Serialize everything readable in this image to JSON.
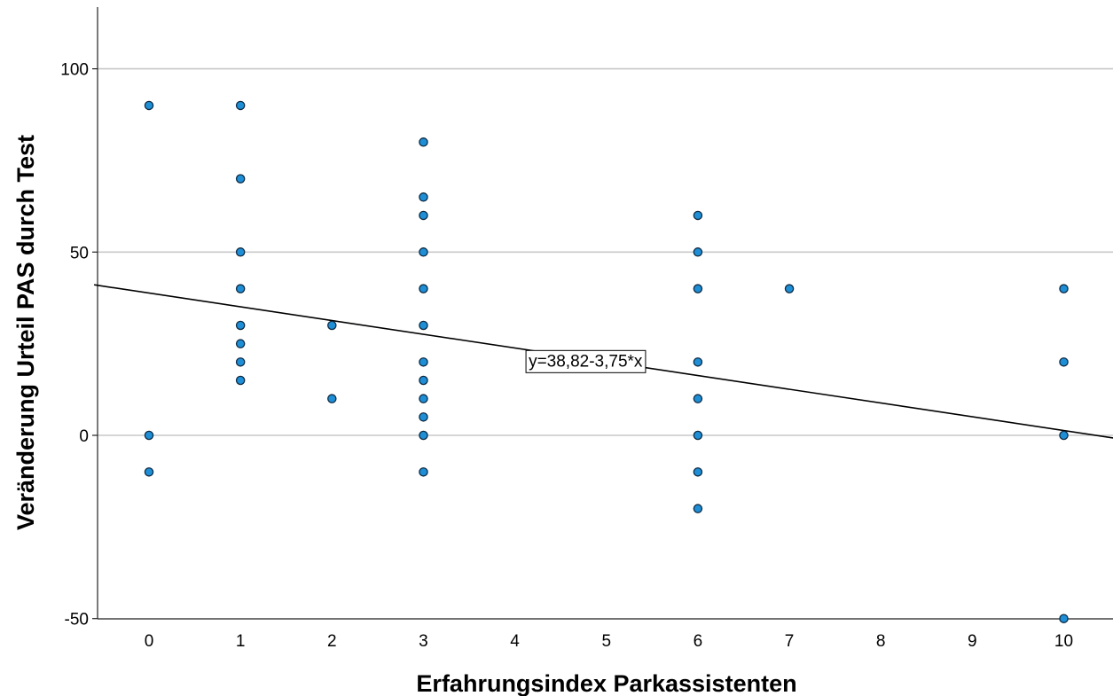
{
  "chart_data": {
    "type": "scatter",
    "xlabel": "Erfahrungsindex Parkassistenten",
    "ylabel": "Veränderung Urteil PAS durch Test",
    "x_ticks": [
      "0",
      "1",
      "2",
      "3",
      "4",
      "5",
      "6",
      "7",
      "8",
      "9",
      "10"
    ],
    "y_ticks": [
      "100",
      "50",
      "0",
      "-50"
    ],
    "xlim": [
      -0.6,
      10.55
    ],
    "ylim": [
      -50,
      118
    ],
    "grid": "horizontal",
    "point_color": "#1e8fd6",
    "points": [
      {
        "x": 0,
        "y": 90
      },
      {
        "x": 0,
        "y": 0
      },
      {
        "x": 0,
        "y": -10
      },
      {
        "x": 1,
        "y": 90
      },
      {
        "x": 1,
        "y": 70
      },
      {
        "x": 1,
        "y": 50
      },
      {
        "x": 1,
        "y": 40
      },
      {
        "x": 1,
        "y": 30
      },
      {
        "x": 1,
        "y": 25
      },
      {
        "x": 1,
        "y": 20
      },
      {
        "x": 1,
        "y": 15
      },
      {
        "x": 2,
        "y": 30
      },
      {
        "x": 2,
        "y": 10
      },
      {
        "x": 3,
        "y": 80
      },
      {
        "x": 3,
        "y": 65
      },
      {
        "x": 3,
        "y": 60
      },
      {
        "x": 3,
        "y": 50
      },
      {
        "x": 3,
        "y": 40
      },
      {
        "x": 3,
        "y": 30
      },
      {
        "x": 3,
        "y": 20
      },
      {
        "x": 3,
        "y": 15
      },
      {
        "x": 3,
        "y": 10
      },
      {
        "x": 3,
        "y": 5
      },
      {
        "x": 3,
        "y": 0
      },
      {
        "x": 3,
        "y": -10
      },
      {
        "x": 6,
        "y": 60
      },
      {
        "x": 6,
        "y": 50
      },
      {
        "x": 6,
        "y": 40
      },
      {
        "x": 6,
        "y": 20
      },
      {
        "x": 6,
        "y": 10
      },
      {
        "x": 6,
        "y": 0
      },
      {
        "x": 6,
        "y": -10
      },
      {
        "x": 6,
        "y": -20
      },
      {
        "x": 7,
        "y": 40
      },
      {
        "x": 10,
        "y": 40
      },
      {
        "x": 10,
        "y": 20
      },
      {
        "x": 10,
        "y": 0
      },
      {
        "x": 10,
        "y": -50
      }
    ],
    "regression": {
      "intercept": 38.82,
      "slope": -3.75
    },
    "equation_label": "y=38,82-3,75*x",
    "equation_anchor": {
      "x": 4.15,
      "y": 20
    }
  }
}
